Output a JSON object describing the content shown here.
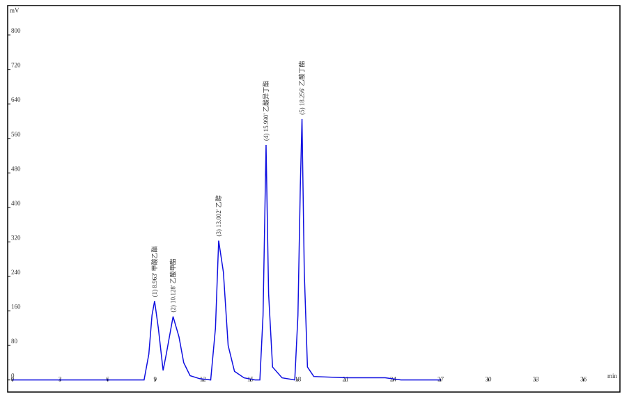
{
  "chart_data": {
    "type": "line",
    "y_label": "mV",
    "x_label": "min",
    "xlim": [
      -0.3,
      38.3
    ],
    "ylim": [
      -28,
      868
    ],
    "xticks": [
      0,
      3,
      6,
      9,
      12,
      15,
      18,
      21,
      24,
      27,
      30,
      33,
      36
    ],
    "yticks": [
      0,
      80,
      160,
      240,
      320,
      400,
      480,
      560,
      640,
      720,
      800
    ],
    "series": [
      {
        "name": "signal",
        "color": "#1010e0",
        "x": [
          0,
          8.3,
          8.6,
          8.8,
          8.963,
          9.2,
          9.5,
          9.7,
          10.128,
          10.5,
          10.8,
          11.2,
          11.8,
          12.5,
          12.8,
          13.002,
          13.3,
          13.6,
          14.0,
          14.6,
          15.3,
          15.6,
          15.8,
          15.99,
          16.15,
          16.4,
          17.0,
          17.8,
          18.0,
          18.15,
          18.256,
          18.4,
          18.6,
          19.0,
          21,
          23.5,
          24.5,
          27
        ],
        "values": [
          0,
          0,
          60,
          150,
          183,
          120,
          22,
          60,
          147,
          100,
          40,
          10,
          3,
          0,
          120,
          323,
          250,
          80,
          20,
          5,
          0,
          0,
          150,
          545,
          200,
          30,
          5,
          0,
          150,
          450,
          605,
          250,
          30,
          8,
          5,
          5,
          0,
          0
        ]
      }
    ],
    "peaks": [
      {
        "label": "(1) 8.963' 甲酸乙酯",
        "x": 8.963,
        "y": 183
      },
      {
        "label": "(2) 10.128' 乙酸甲酯",
        "x": 10.128,
        "y": 147
      },
      {
        "label": "(3) 13.002' 乙醇",
        "x": 13.002,
        "y": 323
      },
      {
        "label": "(4) 15.990' 乙酸异丁酯",
        "x": 15.99,
        "y": 545
      },
      {
        "label": "(5) 18.256' 乙酸丁酯",
        "x": 18.256,
        "y": 605
      }
    ]
  }
}
